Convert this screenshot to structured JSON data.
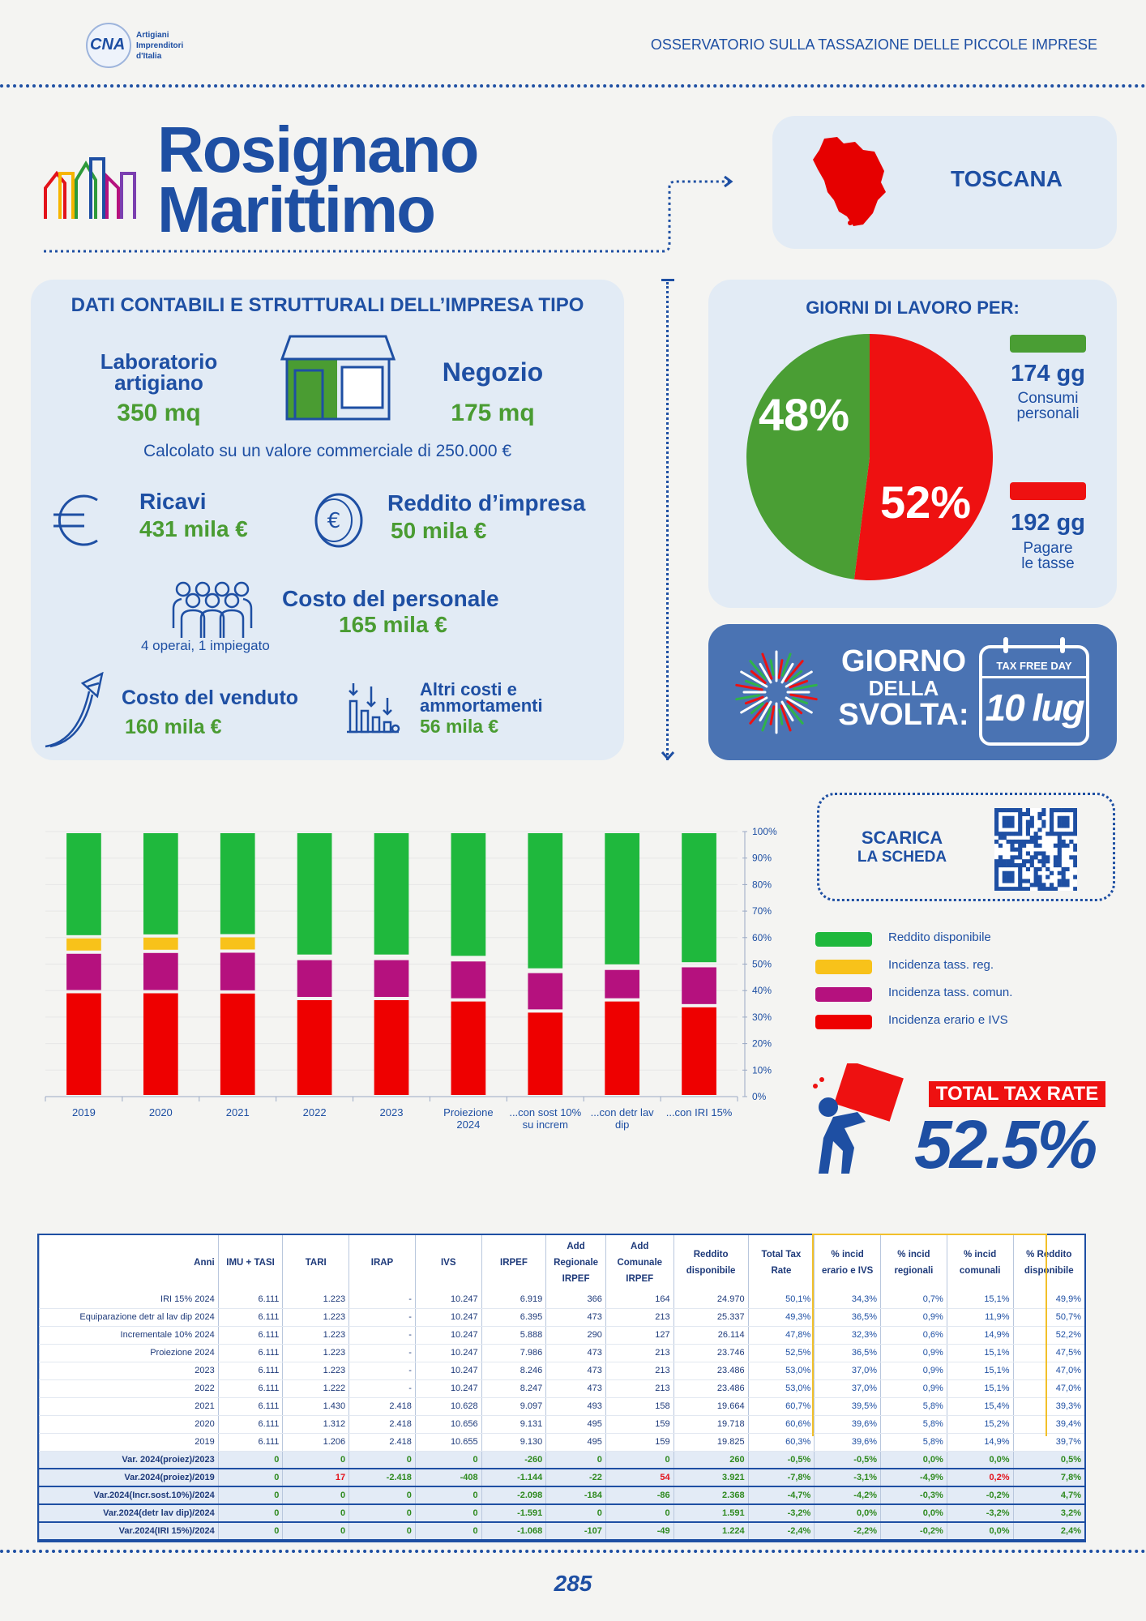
{
  "header": {
    "logo_text": "CNA",
    "logo_lines": [
      "Artigiani",
      "Imprenditori",
      "d'Italia"
    ],
    "title": "OSSERVATORIO SULLA TASSAZIONE DELLE PICCOLE IMPRESE"
  },
  "city": {
    "line1": "Rosignano",
    "line2": "Marittimo",
    "region": "TOSCANA"
  },
  "impresa": {
    "title": "DATI CONTABILI E STRUTTURALI DELL’IMPRESA TIPO",
    "laboratorio_label": "Laboratorio\nartigiano",
    "laboratorio_value": "350 mq",
    "negozio_label": "Negozio",
    "negozio_value": "175 mq",
    "note": "Calcolato su un valore commerciale di 250.000 €",
    "ricavi_label": "Ricavi",
    "ricavi_value": "431 mila €",
    "reddito_label": "Reddito d’impresa",
    "reddito_value": "50 mila €",
    "personale_label": "Costo del personale",
    "personale_value": "165 mila €",
    "personale_note": "4 operai, 1 impiegato",
    "venduto_label": "Costo del venduto",
    "venduto_value": "160 mila €",
    "altri_label": "Altri costi e\nammortamenti",
    "altri_value": "56 mila €"
  },
  "giorni": {
    "title": "GIORNI DI LAVORO PER:",
    "green_pct": "48%",
    "red_pct": "52%",
    "green_share": 48,
    "red_share": 52,
    "green_days": "174 gg",
    "green_label": "Consumi\npersonali",
    "red_days": "192 gg",
    "red_label": "Pagare\nle tasse",
    "colors": {
      "green": "#4a9e34",
      "red": "#ee1111"
    }
  },
  "svolta": {
    "line1": "GIORNO",
    "line2": "DELLA",
    "line3": "SVOLTA:",
    "tax_free_label": "TAX FREE DAY",
    "date": "10 lug"
  },
  "scarica": {
    "line1": "SCARICA",
    "line2": "LA SCHEDA"
  },
  "chart_data": {
    "type": "bar",
    "stacked": true,
    "categories": [
      "2019",
      "2020",
      "2021",
      "2022",
      "2023",
      "Proiezione\n2024",
      "...con sost 10%\nsu increm",
      "...con detr lav\ndip",
      "...con IRI 15%"
    ],
    "series": [
      {
        "name": "Incidenza erario e IVS",
        "color": "#ee0000",
        "values": [
          39.6,
          39.6,
          39.5,
          37.0,
          37.0,
          36.5,
          32.3,
          36.5,
          34.3
        ]
      },
      {
        "name": "Incidenza tass. comun.",
        "color": "#b5117e",
        "values": [
          14.9,
          15.2,
          15.4,
          15.1,
          15.1,
          15.1,
          14.9,
          11.9,
          15.1
        ]
      },
      {
        "name": "Incidenza tass. reg.",
        "color": "#f8c21a",
        "values": [
          5.8,
          5.8,
          5.8,
          0.9,
          0.9,
          0.9,
          0.6,
          0.9,
          0.7
        ]
      },
      {
        "name": "Reddito disponibile",
        "color": "#1fb83d",
        "values": [
          39.7,
          39.4,
          39.3,
          47.0,
          47.0,
          47.5,
          52.2,
          50.7,
          49.9
        ]
      }
    ],
    "ylim": [
      0,
      100
    ],
    "yticks": [
      "0%",
      "10%",
      "20%",
      "30%",
      "40%",
      "50%",
      "60%",
      "70%",
      "80%",
      "90%",
      "100%"
    ],
    "legend_order": [
      "Reddito disponibile",
      "Incidenza tass. reg.",
      "Incidenza tass. comun.",
      "Incidenza erario e IVS"
    ],
    "legend_position": "right"
  },
  "ttr": {
    "label": "TOTAL TAX RATE",
    "value": "52.5%"
  },
  "table": {
    "headers": [
      "Anni",
      "IMU + TASI",
      "TARI",
      "IRAP",
      "IVS",
      "IRPEF",
      "Add\nRegionale\nIRPEF",
      "Add\nComunale\nIRPEF",
      "Reddito\ndisponibile",
      "Total Tax\nRate",
      "% incid\nerario e IVS",
      "% incid\nregionali",
      "% incid\ncomunali",
      "% Reddito\ndisponibile"
    ],
    "rows": [
      [
        "IRI 15% 2024",
        "6.111",
        "1.223",
        "-",
        "10.247",
        "6.919",
        "366",
        "164",
        "24.970",
        "50,1%",
        "34,3%",
        "0,7%",
        "15,1%",
        "49,9%"
      ],
      [
        "Equiparazione detr al lav dip 2024",
        "6.111",
        "1.223",
        "-",
        "10.247",
        "6.395",
        "473",
        "213",
        "25.337",
        "49,3%",
        "36,5%",
        "0,9%",
        "11,9%",
        "50,7%"
      ],
      [
        "Incrementale 10% 2024",
        "6.111",
        "1.223",
        "-",
        "10.247",
        "5.888",
        "290",
        "127",
        "26.114",
        "47,8%",
        "32,3%",
        "0,6%",
        "14,9%",
        "52,2%"
      ],
      [
        "Proiezione 2024",
        "6.111",
        "1.223",
        "-",
        "10.247",
        "7.986",
        "473",
        "213",
        "23.746",
        "52,5%",
        "36,5%",
        "0,9%",
        "15,1%",
        "47,5%"
      ],
      [
        "2023",
        "6.111",
        "1.223",
        "-",
        "10.247",
        "8.246",
        "473",
        "213",
        "23.486",
        "53,0%",
        "37,0%",
        "0,9%",
        "15,1%",
        "47,0%"
      ],
      [
        "2022",
        "6.111",
        "1.222",
        "-",
        "10.247",
        "8.247",
        "473",
        "213",
        "23.486",
        "53,0%",
        "37,0%",
        "0,9%",
        "15,1%",
        "47,0%"
      ],
      [
        "2021",
        "6.111",
        "1.430",
        "2.418",
        "10.628",
        "9.097",
        "493",
        "158",
        "19.664",
        "60,7%",
        "39,5%",
        "5,8%",
        "15,4%",
        "39,3%"
      ],
      [
        "2020",
        "6.111",
        "1.312",
        "2.418",
        "10.656",
        "9.131",
        "495",
        "159",
        "19.718",
        "60,6%",
        "39,6%",
        "5,8%",
        "15,2%",
        "39,4%"
      ],
      [
        "2019",
        "6.111",
        "1.206",
        "2.418",
        "10.655",
        "9.130",
        "495",
        "159",
        "19.825",
        "60,3%",
        "39,6%",
        "5,8%",
        "14,9%",
        "39,7%"
      ]
    ],
    "vars": [
      [
        "Var. 2024(proiez)/2023",
        "0",
        "0",
        "0",
        "0",
        "-260",
        "0",
        "0",
        "260",
        "-0,5%",
        "-0,5%",
        "0,0%",
        "0,0%",
        "0,5%"
      ],
      [
        "Var.2024(proiez)/2019",
        "0",
        "17",
        "-2.418",
        "-408",
        "-1.144",
        "-22",
        "54",
        "3.921",
        "-7,8%",
        "-3,1%",
        "-4,9%",
        "0,2%",
        "7,8%"
      ],
      [
        "Var.2024(Incr.sost.10%)/2024",
        "0",
        "0",
        "0",
        "0",
        "-2.098",
        "-184",
        "-86",
        "2.368",
        "-4,7%",
        "-4,2%",
        "-0,3%",
        "-0,2%",
        "4,7%"
      ],
      [
        "Var.2024(detr lav dip)/2024",
        "0",
        "0",
        "0",
        "0",
        "-1.591",
        "0",
        "0",
        "1.591",
        "-3,2%",
        "0,0%",
        "0,0%",
        "-3,2%",
        "3,2%"
      ],
      [
        "Var.2024(IRI 15%)/2024",
        "0",
        "0",
        "0",
        "0",
        "-1.068",
        "-107",
        "-49",
        "1.224",
        "-2,4%",
        "-2,2%",
        "-0,2%",
        "0,0%",
        "2,4%"
      ]
    ]
  },
  "page_number": "285"
}
